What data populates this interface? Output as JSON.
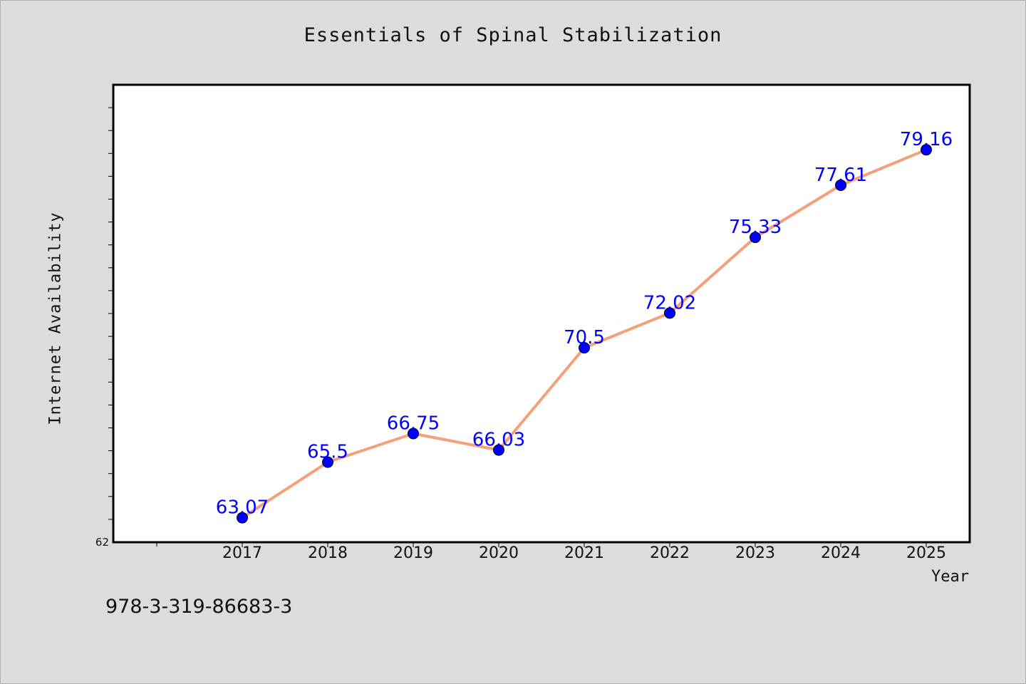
{
  "chart_data": {
    "type": "line",
    "title": "Essentials of Spinal Stabilization",
    "xlabel": "Year",
    "ylabel": "Internet Availability",
    "categories": [
      "2017",
      "2018",
      "2019",
      "2020",
      "2021",
      "2022",
      "2023",
      "2024",
      "2025"
    ],
    "series": [
      {
        "values": [
          63.07,
          65.5,
          66.75,
          66.03,
          70.5,
          72.02,
          75.33,
          77.61,
          79.16
        ],
        "labels": [
          "63.07",
          "65.5",
          "66.75",
          "66.03",
          "70.5",
          "72.02",
          "75.33",
          "77.61",
          "79.16"
        ]
      }
    ],
    "ylim": [
      62,
      82
    ],
    "ytick_labels": [
      "62"
    ],
    "y_minor_step": 1,
    "line_color": "#f4a07a",
    "marker_color": "#0000ff",
    "label_color": "#0000ff",
    "grid": false,
    "legend": "none"
  },
  "footer_code": "978-3-319-86683-3"
}
